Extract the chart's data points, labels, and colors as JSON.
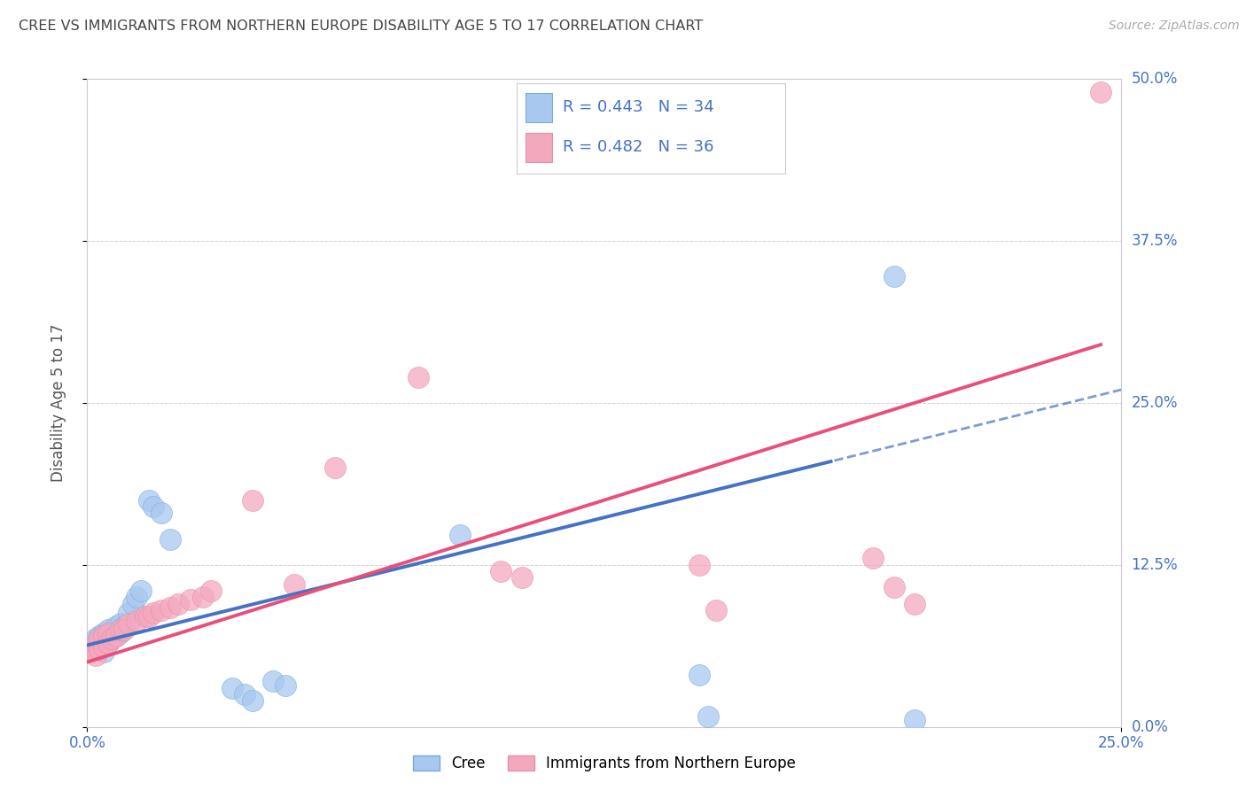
{
  "title": "CREE VS IMMIGRANTS FROM NORTHERN EUROPE DISABILITY AGE 5 TO 17 CORRELATION CHART",
  "source": "Source: ZipAtlas.com",
  "ylabel_label": "Disability Age 5 to 17",
  "xlim": [
    0.0,
    0.25
  ],
  "ylim": [
    0.0,
    0.5
  ],
  "cree_color": "#a8c8f0",
  "immigrant_color": "#f4a8be",
  "trendline_cree_color": "#4472c4",
  "trendline_immigrant_color": "#e8507a",
  "background_color": "#ffffff",
  "grid_color": "#cccccc",
  "title_color": "#444444",
  "axis_label_color": "#4472c4",
  "legend_text_color": "#4472c4",
  "cree_x": [
    0.001,
    0.002,
    0.002,
    0.003,
    0.003,
    0.004,
    0.004,
    0.005,
    0.005,
    0.006,
    0.006,
    0.007,
    0.007,
    0.008,
    0.008,
    0.009,
    0.01,
    0.011,
    0.012,
    0.013,
    0.015,
    0.016,
    0.018,
    0.02,
    0.035,
    0.038,
    0.04,
    0.045,
    0.048,
    0.09,
    0.148,
    0.15,
    0.195,
    0.2
  ],
  "cree_y": [
    0.06,
    0.062,
    0.068,
    0.065,
    0.07,
    0.058,
    0.072,
    0.065,
    0.075,
    0.068,
    0.072,
    0.07,
    0.078,
    0.073,
    0.08,
    0.078,
    0.088,
    0.095,
    0.1,
    0.105,
    0.175,
    0.17,
    0.165,
    0.145,
    0.03,
    0.025,
    0.02,
    0.035,
    0.032,
    0.148,
    0.04,
    0.008,
    0.348,
    0.005
  ],
  "immigrant_x": [
    0.001,
    0.002,
    0.002,
    0.003,
    0.003,
    0.004,
    0.004,
    0.005,
    0.005,
    0.006,
    0.007,
    0.008,
    0.009,
    0.01,
    0.012,
    0.014,
    0.015,
    0.016,
    0.018,
    0.02,
    0.022,
    0.025,
    0.028,
    0.03,
    0.04,
    0.05,
    0.06,
    0.08,
    0.1,
    0.105,
    0.148,
    0.152,
    0.19,
    0.195,
    0.2,
    0.245
  ],
  "immigrant_y": [
    0.06,
    0.055,
    0.065,
    0.06,
    0.068,
    0.062,
    0.07,
    0.065,
    0.072,
    0.068,
    0.07,
    0.075,
    0.075,
    0.08,
    0.082,
    0.085,
    0.085,
    0.088,
    0.09,
    0.092,
    0.095,
    0.098,
    0.1,
    0.105,
    0.175,
    0.11,
    0.2,
    0.27,
    0.12,
    0.115,
    0.125,
    0.09,
    0.13,
    0.108,
    0.095,
    0.49
  ]
}
